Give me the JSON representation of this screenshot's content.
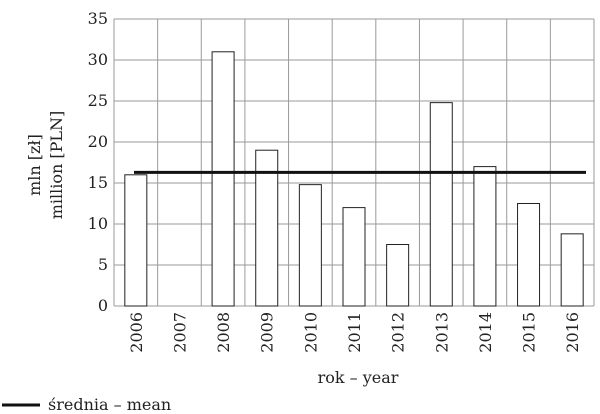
{
  "chart_data": {
    "type": "bar",
    "title": "",
    "categories": [
      "2006",
      "2007",
      "2008",
      "2009",
      "2010",
      "2011",
      "2012",
      "2013",
      "2014",
      "2015",
      "2016"
    ],
    "values": [
      16,
      0,
      31,
      19,
      14.8,
      12,
      7.5,
      24.8,
      17,
      12.5,
      8.8
    ],
    "mean": 16.3,
    "ylim": [
      0,
      35
    ],
    "yticks": [
      0,
      5,
      10,
      15,
      20,
      25,
      30,
      35
    ],
    "xlabel": "rok – year",
    "ylabel_line1": "mln [zł]",
    "ylabel_line2": "million [PLN]",
    "legend_label": "średnia – mean",
    "grid": true,
    "legend_position": "bottom-left",
    "colors": {
      "bar_fill": "#ffffff",
      "bar_stroke": "#222222",
      "mean_line": "#111111",
      "grid": "#9a9a9a"
    }
  }
}
